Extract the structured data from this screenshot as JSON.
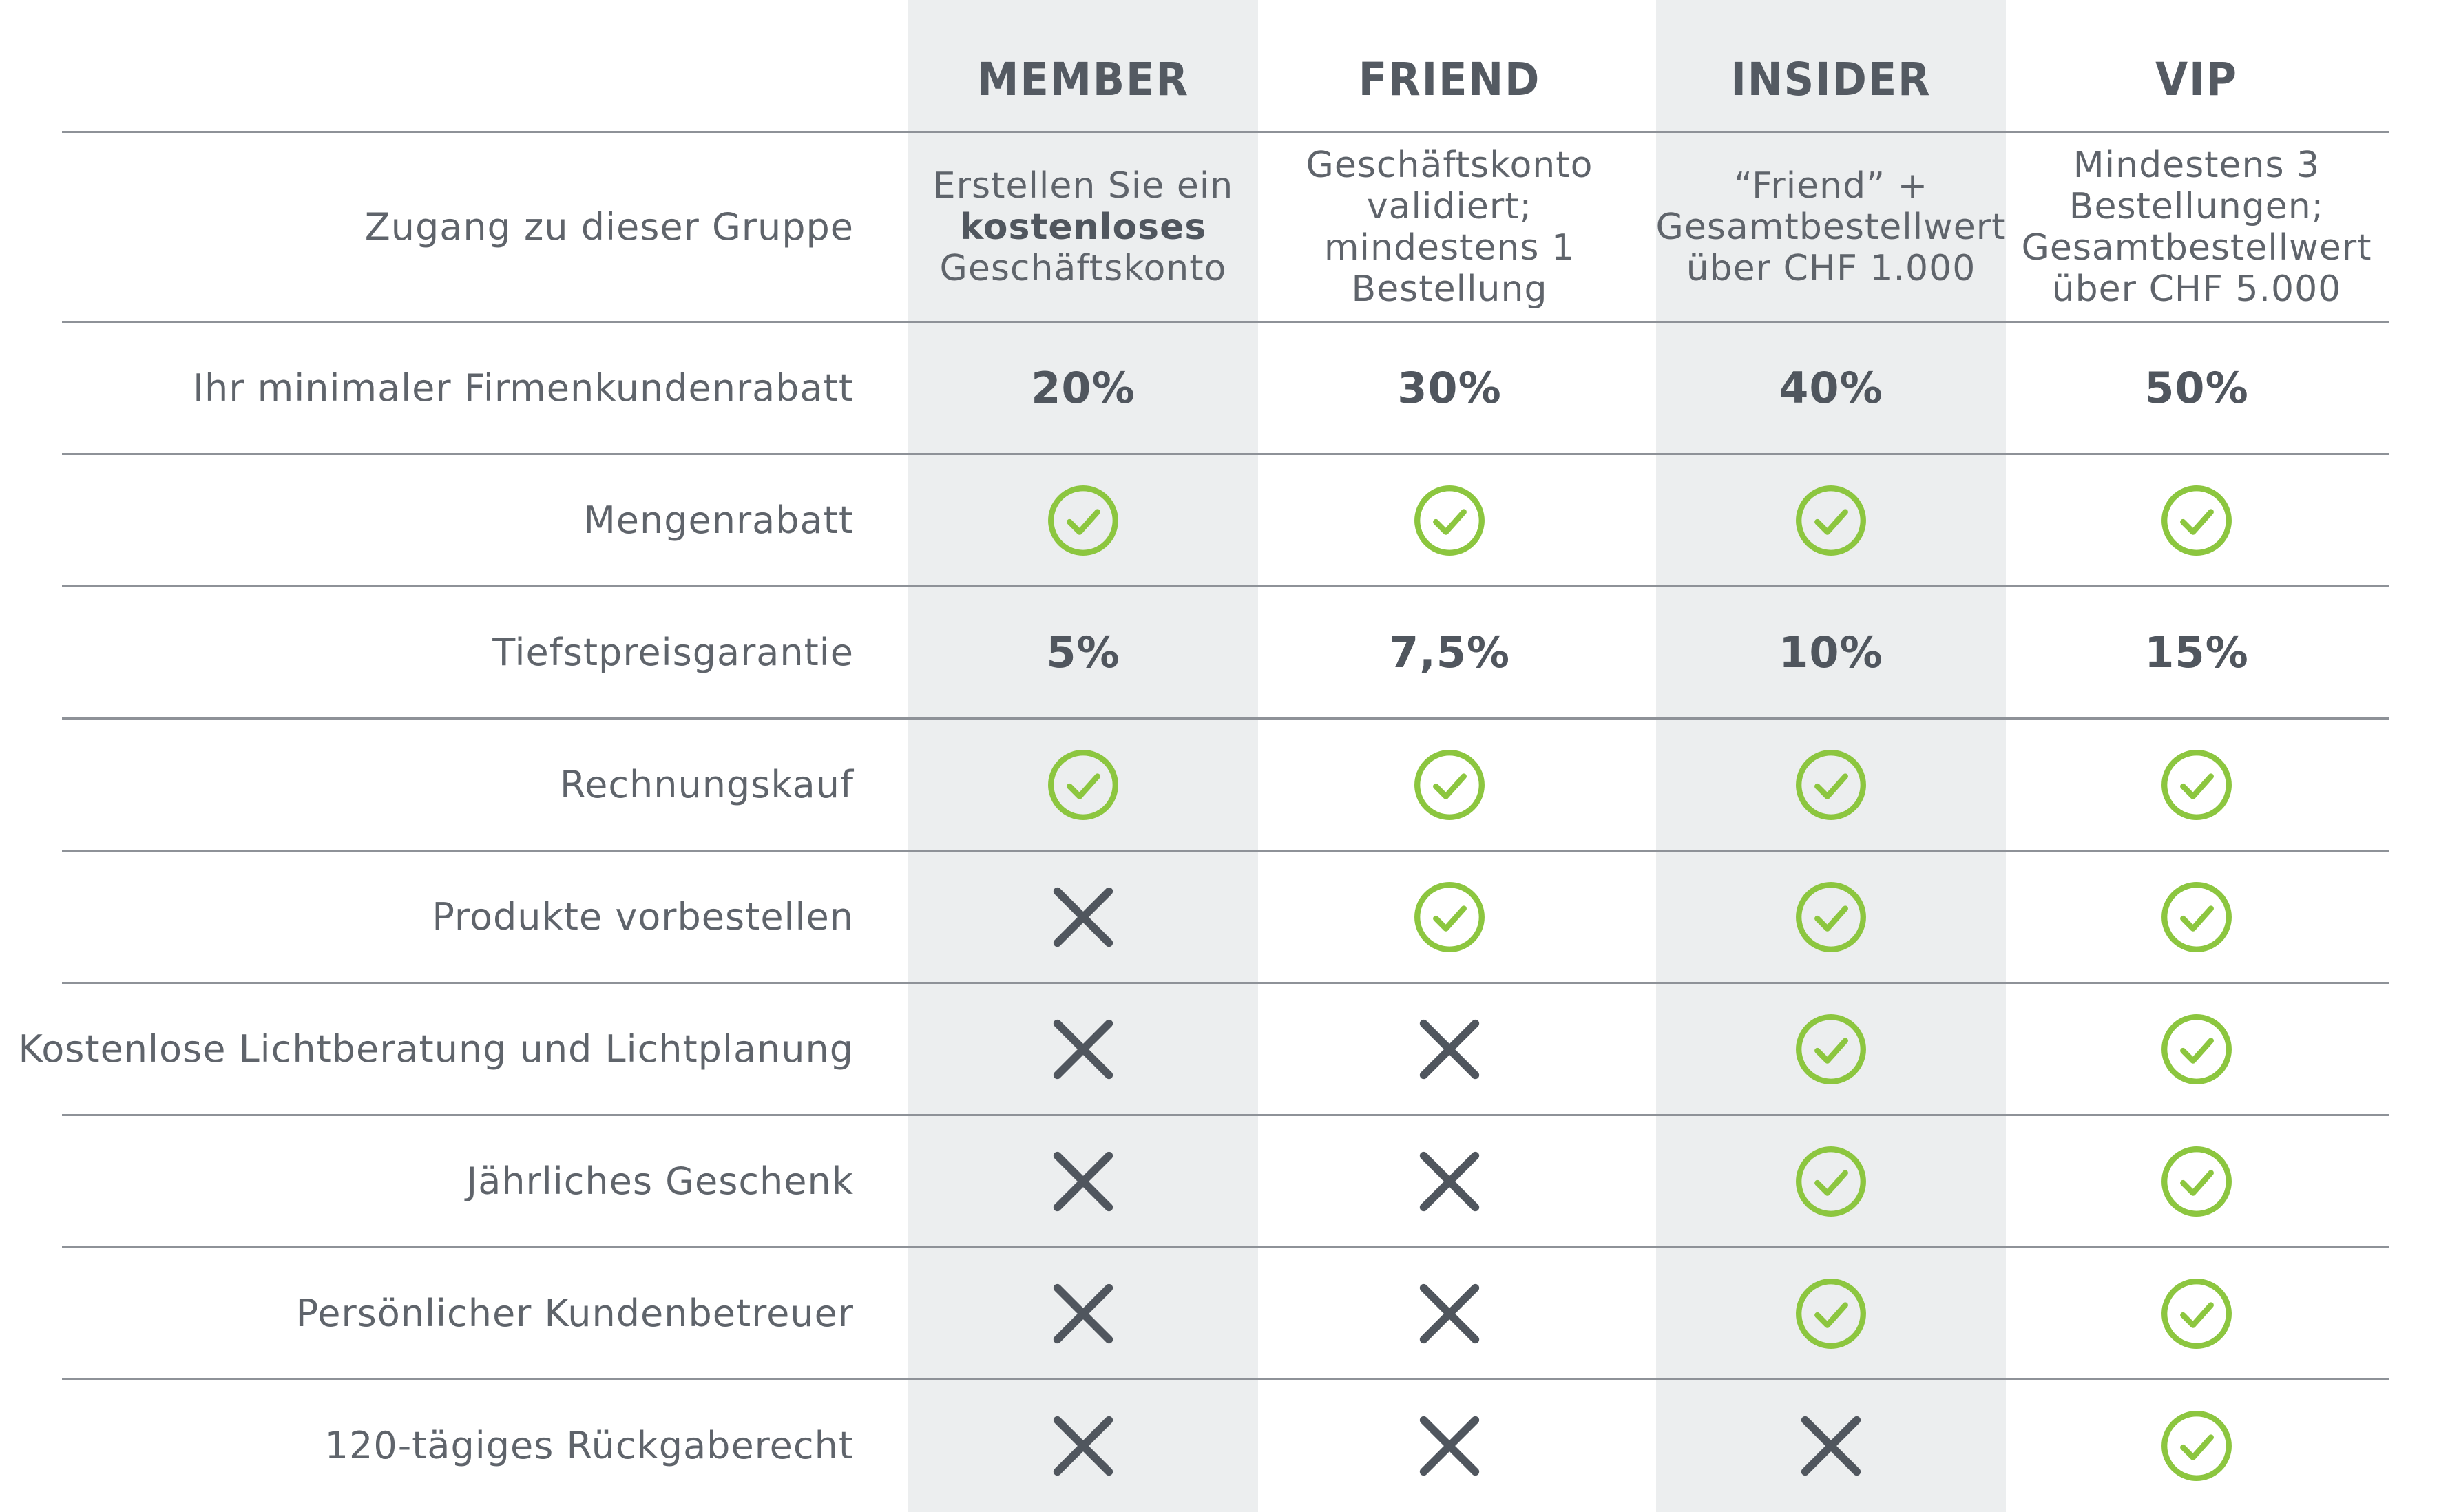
{
  "columns": [
    {
      "key": "member",
      "label": "MEMBER"
    },
    {
      "key": "friend",
      "label": "FRIEND"
    },
    {
      "key": "insider",
      "label": "INSIDER"
    },
    {
      "key": "vip",
      "label": "VIP"
    }
  ],
  "rows": {
    "access": {
      "label": "Zugang zu dieser Gruppe",
      "member": {
        "line1": "Erstellen Sie ein",
        "bold": "kostenloses",
        "line3": "Geschäftskonto"
      },
      "friend": {
        "line1": "Geschäftskonto",
        "line2": "validiert;",
        "line3": "mindestens 1",
        "line4": "Bestellung"
      },
      "insider": {
        "line1": "“Friend” +",
        "line2": "Gesamtbestellwert",
        "line3": "über CHF 1.000"
      },
      "vip": {
        "line1": "Mindestens 3",
        "line2": "Bestellungen;",
        "line3": "Gesamtbestellwert",
        "line4": "über CHF 5.000"
      }
    },
    "discount": {
      "label": "Ihr minimaler Firmenkundenrabatt",
      "member": "20%",
      "friend": "30%",
      "insider": "40%",
      "vip": "50%"
    },
    "volume": {
      "label": "Mengenrabatt",
      "member": "check",
      "friend": "check",
      "insider": "check",
      "vip": "check"
    },
    "lowprice": {
      "label": "Tiefstpreisgarantie",
      "member": "5%",
      "friend": "7,5%",
      "insider": "10%",
      "vip": "15%"
    },
    "invoice": {
      "label": "Rechnungskauf",
      "member": "check",
      "friend": "check",
      "insider": "check",
      "vip": "check"
    },
    "preorder": {
      "label": "Produkte vorbestellen",
      "member": "cross",
      "friend": "check",
      "insider": "check",
      "vip": "check"
    },
    "lighting": {
      "label": "Kostenlose Lichtberatung und Lichtplanung",
      "member": "cross",
      "friend": "cross",
      "insider": "check",
      "vip": "check"
    },
    "gift": {
      "label": "Jährliches Geschenk",
      "member": "cross",
      "friend": "cross",
      "insider": "check",
      "vip": "check"
    },
    "manager": {
      "label": "Persönlicher Kundenbetreuer",
      "member": "cross",
      "friend": "cross",
      "insider": "check",
      "vip": "check"
    },
    "returns": {
      "label": "120-tägiges Rückgaberecht",
      "member": "cross",
      "friend": "cross",
      "insider": "cross",
      "vip": "check"
    }
  },
  "colors": {
    "check": "#8cc63f",
    "cross": "#50565e",
    "column_shade": "#eceeef",
    "text": "#5f646b",
    "rule": "#8e9298"
  },
  "icons": {
    "check": "check-circle-icon",
    "cross": "cross-icon"
  }
}
